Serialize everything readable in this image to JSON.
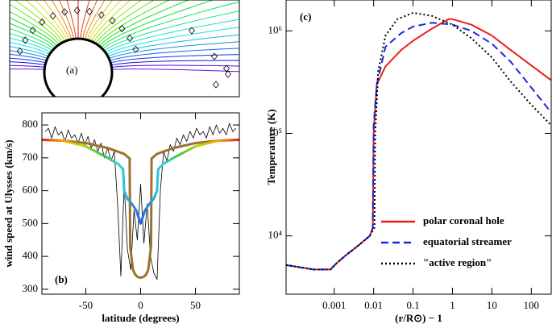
{
  "chart_data": [
    {
      "type": "diagram",
      "annotation": "(a)"
    },
    {
      "type": "line",
      "annotation": "(b)",
      "y_label": "wind speed at Ulysses (km/s)",
      "x_label": "latitude (degrees)",
      "xlim": [
        -90,
        90
      ],
      "xticks": [
        -50,
        0,
        50
      ],
      "ylim": [
        285,
        837
      ],
      "yticks": [
        300,
        400,
        500,
        600,
        700,
        800
      ],
      "series": [
        {
          "color": "#000000",
          "width": 0.8,
          "dash": "solid",
          "x": [
            -87,
            -84,
            -81,
            -78,
            -75,
            -72,
            -69,
            -66,
            -63,
            -60,
            -57,
            -54,
            -51,
            -48,
            -45,
            -42,
            -39,
            -36,
            -33,
            -30,
            -27,
            -24,
            -21,
            -18,
            -15,
            -12,
            -9,
            -6,
            -3,
            0,
            3,
            6,
            9,
            12,
            15,
            18,
            21,
            24,
            27,
            30,
            33,
            36,
            39,
            42,
            45,
            48,
            51,
            54,
            57,
            60,
            63,
            66,
            69,
            72,
            75,
            78,
            81,
            84,
            87
          ],
          "values": [
            780,
            790,
            760,
            795,
            770,
            780,
            750,
            785,
            760,
            770,
            745,
            775,
            740,
            765,
            730,
            755,
            720,
            745,
            700,
            730,
            690,
            720,
            560,
            340,
            620,
            420,
            360,
            540,
            450,
            620,
            440,
            560,
            400,
            350,
            330,
            600,
            720,
            690,
            740,
            720,
            760,
            740,
            770,
            750,
            780,
            760,
            790,
            770,
            780,
            760,
            795,
            770,
            800,
            775,
            790,
            770,
            805,
            780,
            790
          ]
        },
        {
          "color": "#9a7330",
          "width": 3,
          "dash": "solid",
          "x": [
            -90,
            -70,
            -50,
            -30,
            -15,
            -10,
            -9.5,
            -7,
            -5,
            -3,
            0,
            3,
            5,
            7,
            9.5,
            10,
            15,
            30,
            50,
            70,
            90
          ],
          "values": [
            755,
            752,
            745,
            730,
            712,
            698,
            430,
            360,
            345,
            338,
            335,
            338,
            345,
            360,
            430,
            698,
            712,
            730,
            745,
            752,
            755
          ]
        },
        {
          "colors": [
            "#d62020",
            "#ff9900",
            "#c8d400",
            "#40c840",
            "#30d0e0",
            "#2060e0",
            "#30d0e0",
            "#40c840",
            "#c8d400",
            "#ff9900",
            "#d62020"
          ],
          "width": 3,
          "dash": "solid",
          "x": [
            -90,
            -70,
            -50,
            -30,
            -20,
            -16,
            -15,
            -12,
            -8,
            -4,
            -2,
            0,
            2,
            4,
            8,
            12,
            15,
            16,
            20,
            30,
            50,
            70,
            90
          ],
          "values": [
            755,
            752,
            735,
            700,
            680,
            665,
            600,
            575,
            560,
            540,
            520,
            500,
            520,
            540,
            560,
            575,
            600,
            665,
            680,
            700,
            735,
            752,
            755
          ]
        }
      ]
    },
    {
      "type": "line",
      "annotation": "(c)",
      "y_label": "Temperature (K)",
      "x_label": "(r/R⊙) − 1",
      "xscale": "log",
      "yscale": "log",
      "xlim": [
        6e-05,
        320
      ],
      "xticks": [
        0.001,
        0.01,
        0.1,
        1,
        10,
        100
      ],
      "ylim": [
        2700,
        2000000
      ],
      "yticks": [
        {
          "value": 10000,
          "label": "10⁴"
        },
        {
          "value": 100000,
          "label": "10⁵"
        },
        {
          "value": 1000000,
          "label": "10⁶"
        }
      ],
      "legend": "lower right",
      "series": [
        {
          "name": "polar coronal hole",
          "color": "#e8201c",
          "width": 2,
          "dash": "solid",
          "x": [
            6e-05,
            0.0003,
            0.0008,
            0.0012,
            0.002,
            0.004,
            0.008,
            0.0095,
            0.01,
            0.012,
            0.02,
            0.05,
            0.1,
            0.3,
            0.8,
            1,
            3,
            10,
            30,
            100,
            320
          ],
          "values": [
            5200,
            4700,
            4700,
            5500,
            6500,
            8000,
            10000,
            12000,
            100000,
            300000,
            450000,
            650000,
            800000,
            1050000,
            1300000,
            1300000,
            1150000,
            900000,
            650000,
            460000,
            330000
          ]
        },
        {
          "name": "equatorial streamer",
          "color": "#1a2ad8",
          "width": 2,
          "dash": "dashed",
          "x": [
            6e-05,
            0.0003,
            0.0008,
            0.0012,
            0.002,
            0.004,
            0.008,
            0.0095,
            0.01,
            0.012,
            0.02,
            0.05,
            0.1,
            0.3,
            1,
            3,
            10,
            30,
            100,
            320
          ],
          "values": [
            5200,
            4700,
            4700,
            5500,
            6500,
            8000,
            10000,
            12000,
            120000,
            300000,
            700000,
            950000,
            1100000,
            1200000,
            1150000,
            1000000,
            750000,
            500000,
            280000,
            160000
          ]
        },
        {
          "name": "\"active region\"",
          "color": "#000000",
          "width": 2,
          "dash": "dotted",
          "x": [
            6e-05,
            0.0003,
            0.0008,
            0.0012,
            0.002,
            0.004,
            0.008,
            0.0105,
            0.011,
            0.013,
            0.02,
            0.04,
            0.1,
            0.3,
            1,
            3,
            10,
            30,
            100,
            320
          ],
          "values": [
            5200,
            4700,
            4700,
            5500,
            6500,
            8000,
            10000,
            12000,
            100000,
            400000,
            900000,
            1300000,
            1500000,
            1400000,
            1150000,
            850000,
            550000,
            320000,
            190000,
            120000
          ]
        }
      ]
    }
  ]
}
